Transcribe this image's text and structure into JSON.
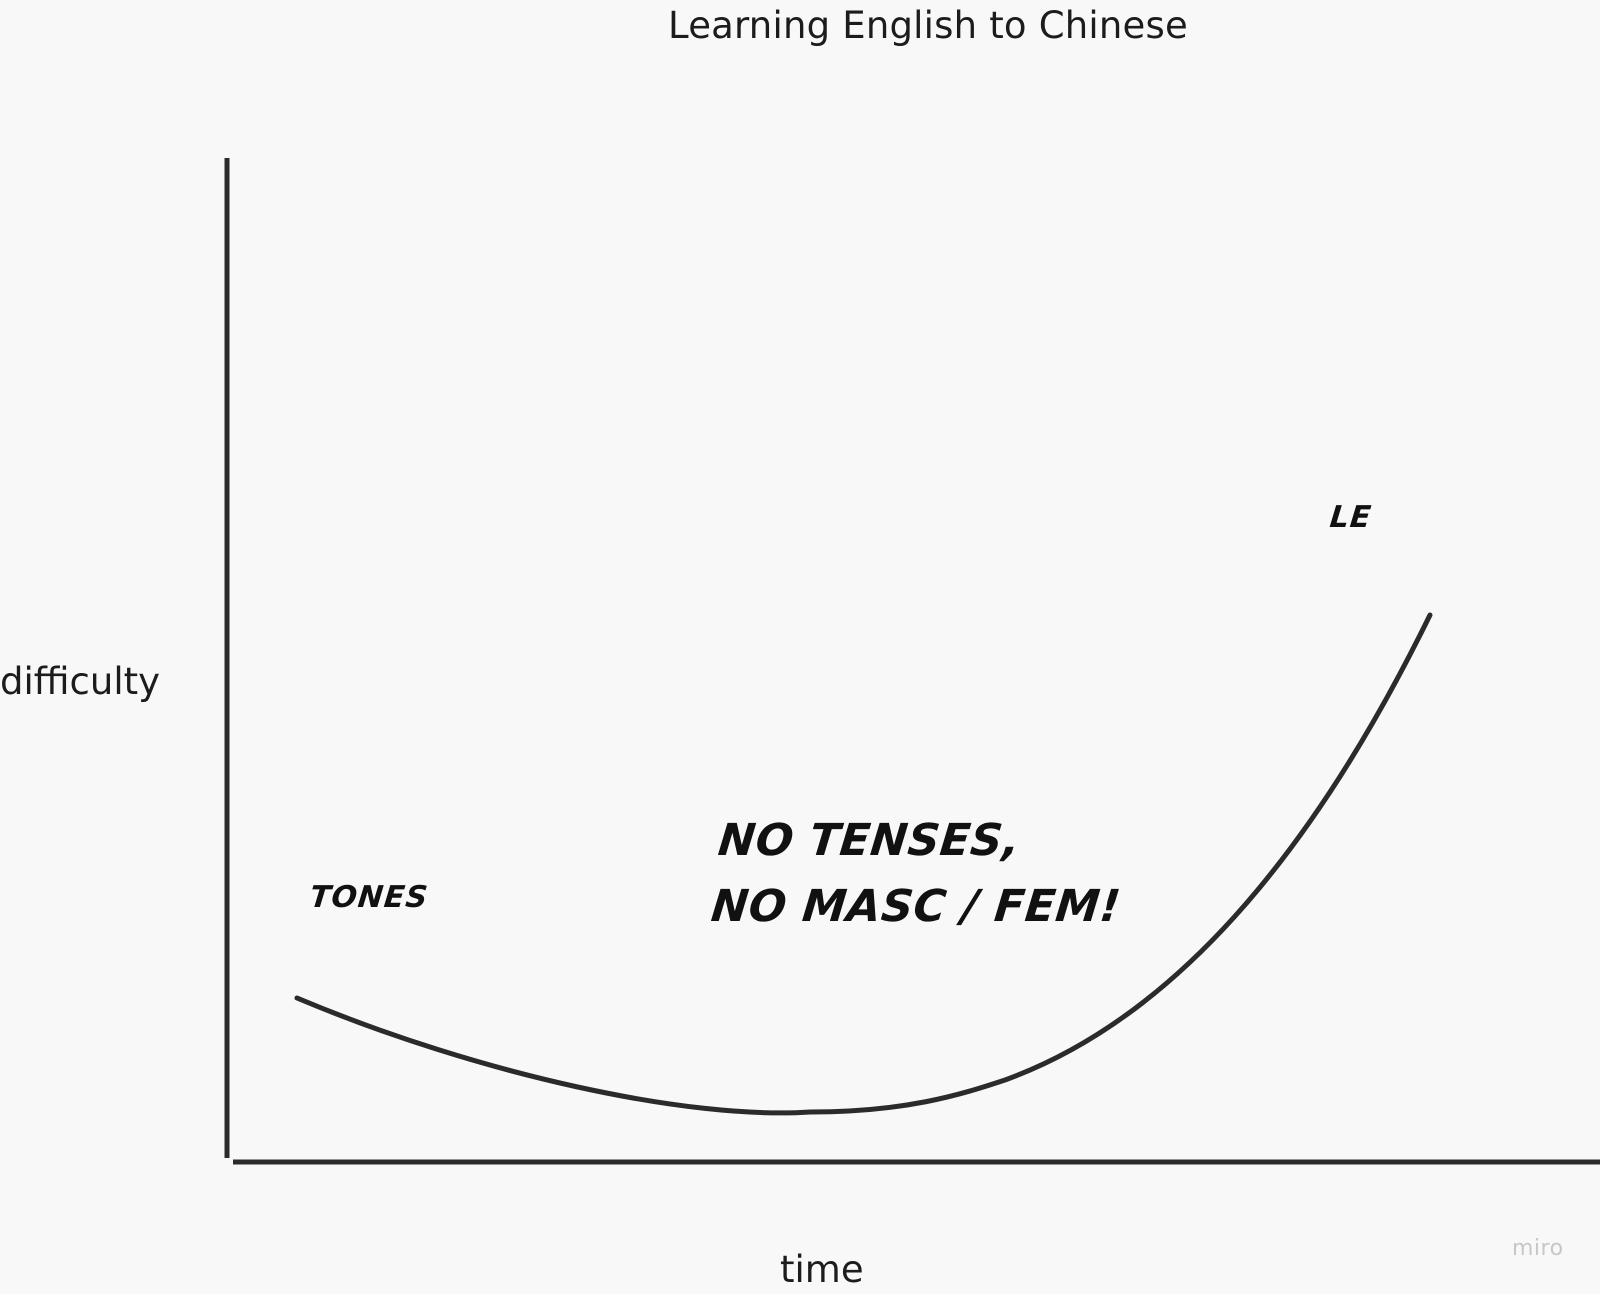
{
  "diagram": {
    "title": "Learning English to Chinese",
    "y_axis_label": "difficulty",
    "x_axis_label": "time",
    "annotations": {
      "tones": "TONES",
      "main_line1": "NO TENSES,",
      "main_line2": "NO MASC / FEM!",
      "le": "LE"
    },
    "watermark": "miro",
    "colors": {
      "background": "#f8f8f8",
      "ink": "#2b2b2b",
      "watermark": "#c7c7c7"
    }
  }
}
